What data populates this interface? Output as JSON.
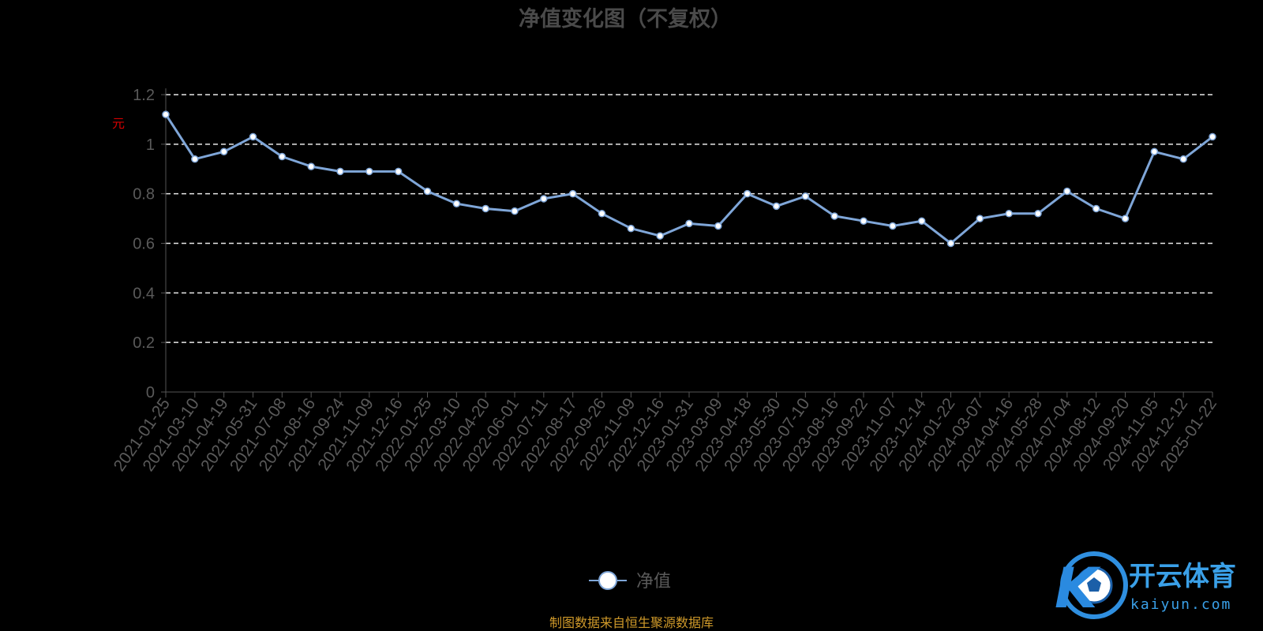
{
  "chart_data": {
    "type": "line",
    "title": "净值变化图（不复权）",
    "ylabel": "元",
    "xlabel": "",
    "ylim": [
      0,
      1.2
    ],
    "yticks": [
      "0",
      "0.2",
      "0.4",
      "0.6",
      "0.8",
      "1",
      "1.2"
    ],
    "grid": true,
    "legend_position": "bottom-center",
    "series_color": "#7fa6d8",
    "categories": [
      "2021-01-25",
      "2021-03-10",
      "2021-04-19",
      "2021-05-31",
      "2021-07-08",
      "2021-08-16",
      "2021-09-24",
      "2021-11-09",
      "2021-12-16",
      "2022-01-25",
      "2022-03-10",
      "2022-04-20",
      "2022-06-01",
      "2022-07-11",
      "2022-08-17",
      "2022-09-26",
      "2022-11-09",
      "2022-12-16",
      "2023-01-31",
      "2023-03-09",
      "2023-04-18",
      "2023-05-30",
      "2023-07-10",
      "2023-08-16",
      "2023-09-22",
      "2023-11-07",
      "2023-12-14",
      "2024-01-22",
      "2024-03-07",
      "2024-04-16",
      "2024-05-28",
      "2024-07-04",
      "2024-08-12",
      "2024-09-20",
      "2024-11-05",
      "2024-12-12",
      "2025-01-22"
    ],
    "series": [
      {
        "name": "净值",
        "values": [
          1.12,
          0.94,
          0.97,
          1.03,
          0.95,
          0.91,
          0.89,
          0.89,
          0.89,
          0.81,
          0.76,
          0.74,
          0.73,
          0.78,
          0.8,
          0.72,
          0.66,
          0.63,
          0.68,
          0.67,
          0.8,
          0.75,
          0.79,
          0.71,
          0.69,
          0.67,
          0.69,
          0.6,
          0.7,
          0.72,
          0.72,
          0.81,
          0.74,
          0.7,
          0.97,
          0.94,
          1.03
        ]
      }
    ]
  },
  "legend": {
    "label": "净值"
  },
  "source_text": "制图数据来自恒生聚源数据库",
  "logo": {
    "text": "开云体育",
    "sub": "kaiyun.com",
    "letter": "K"
  }
}
